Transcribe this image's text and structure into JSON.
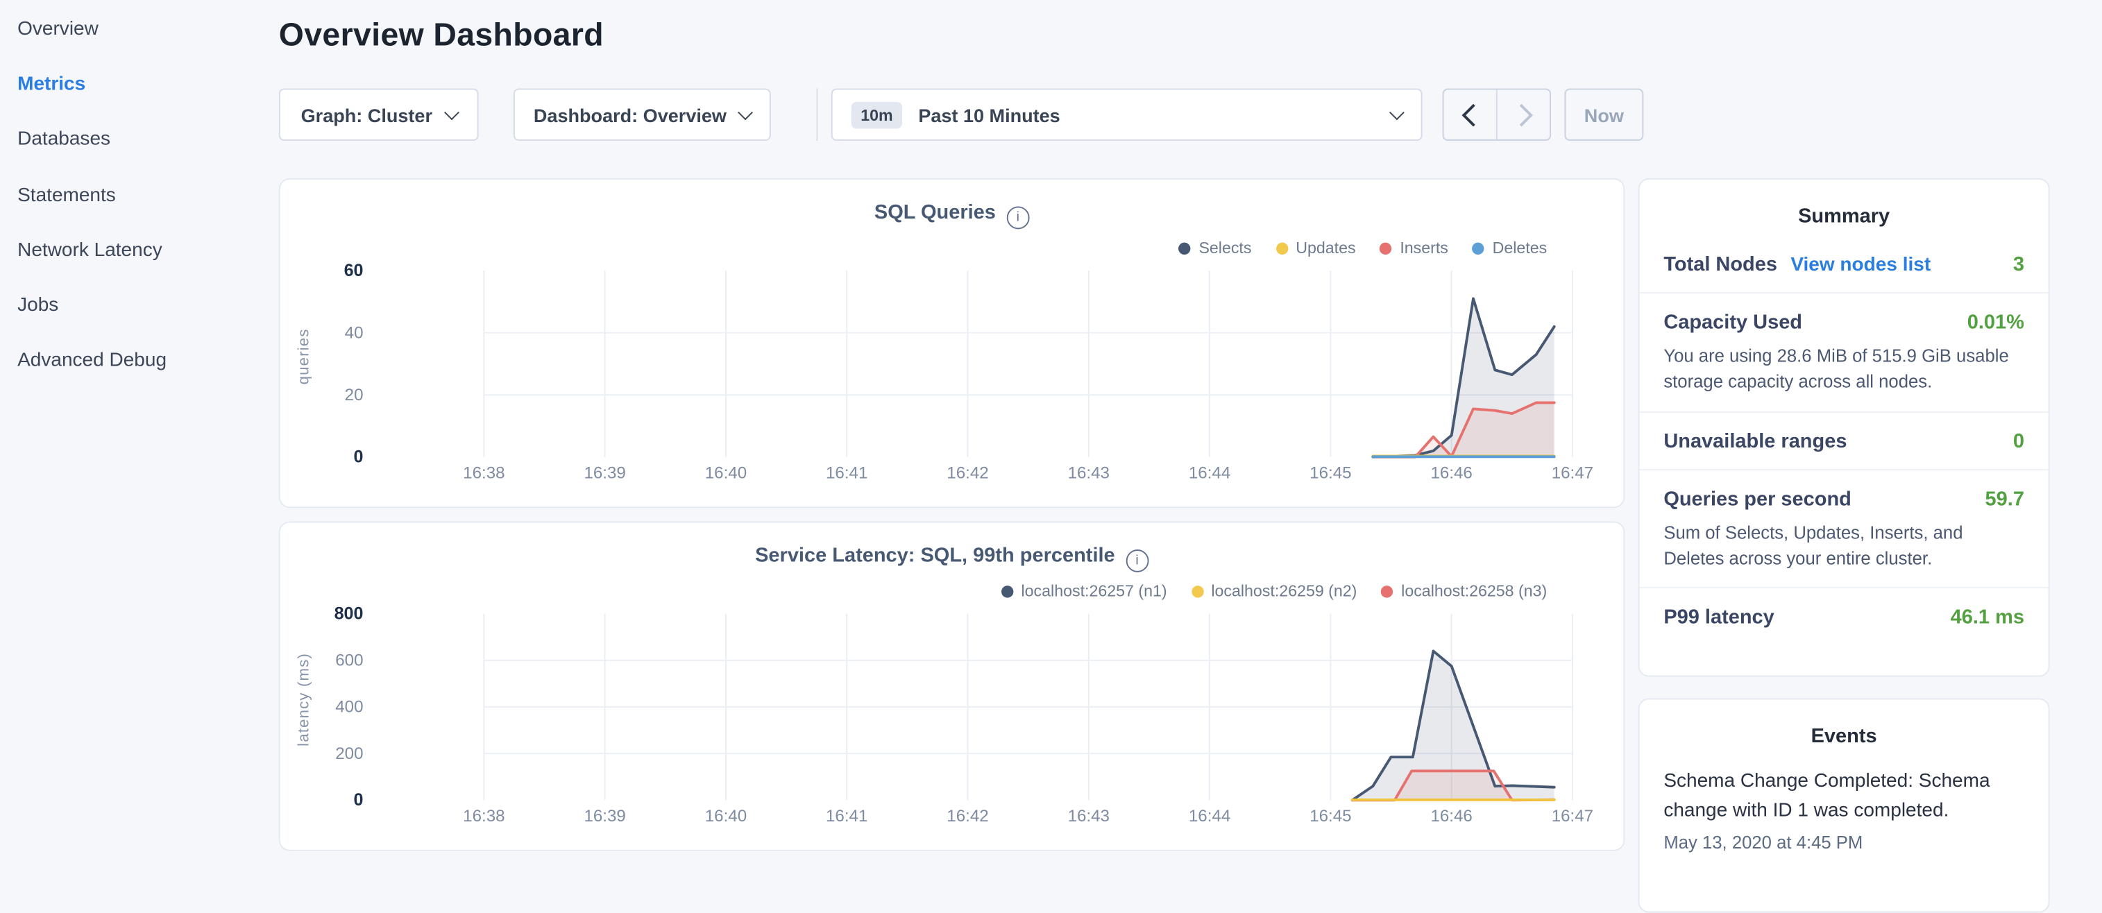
{
  "sidebar": {
    "items": [
      {
        "label": "Overview",
        "active": false
      },
      {
        "label": "Metrics",
        "active": true
      },
      {
        "label": "Databases",
        "active": false
      },
      {
        "label": "Statements",
        "active": false
      },
      {
        "label": "Network Latency",
        "active": false
      },
      {
        "label": "Jobs",
        "active": false
      },
      {
        "label": "Advanced Debug",
        "active": false
      }
    ]
  },
  "header": {
    "title": "Overview Dashboard"
  },
  "controls": {
    "graph_dropdown": "Graph: Cluster",
    "dashboard_dropdown": "Dashboard: Overview",
    "range_badge": "10m",
    "range_label": "Past 10 Minutes",
    "now_label": "Now",
    "prev_enabled": true,
    "next_enabled": false
  },
  "colors": {
    "accent_blue": "#2a7de1",
    "green": "#53a041",
    "navy": "#475872",
    "yellow": "#f0c33c",
    "red": "#e5726f",
    "blue": "#5b9fd6"
  },
  "chart_data": [
    {
      "type": "line",
      "title": "SQL Queries",
      "ylabel": "queries",
      "x_ticks": [
        "16:38",
        "16:39",
        "16:40",
        "16:41",
        "16:42",
        "16:43",
        "16:44",
        "16:45",
        "16:46",
        "16:47"
      ],
      "x_note": "series x values are minutes after 16:38",
      "ylim": [
        0,
        60
      ],
      "y_ticks": [
        0,
        20,
        40,
        60
      ],
      "grid_h_values": [
        20,
        40
      ],
      "grid": true,
      "legend_position": "top-right",
      "legend": [
        {
          "label": "Selects",
          "color": "#475872"
        },
        {
          "label": "Updates",
          "color": "#f2c94c"
        },
        {
          "label": "Inserts",
          "color": "#e5726f"
        },
        {
          "label": "Deletes",
          "color": "#5b9fd6"
        }
      ],
      "series": [
        {
          "name": "Selects",
          "color": "#475872",
          "fill": "rgba(71,88,114,0.13)",
          "points": [
            [
              7.35,
              0
            ],
            [
              7.7,
              0.5
            ],
            [
              7.85,
              2
            ],
            [
              8.0,
              7
            ],
            [
              8.18,
              51
            ],
            [
              8.36,
              28
            ],
            [
              8.5,
              26.5
            ],
            [
              8.7,
              33
            ],
            [
              8.85,
              42
            ]
          ]
        },
        {
          "name": "Inserts",
          "color": "#e5726f",
          "fill": "rgba(229,114,111,0.12)",
          "points": [
            [
              7.35,
              0
            ],
            [
              7.7,
              0
            ],
            [
              7.85,
              6.5
            ],
            [
              8.0,
              0.2
            ],
            [
              8.18,
              15.5
            ],
            [
              8.36,
              15
            ],
            [
              8.5,
              14
            ],
            [
              8.7,
              17.5
            ],
            [
              8.85,
              17.5
            ]
          ]
        },
        {
          "name": "Updates",
          "color": "#f0c33c",
          "fill": null,
          "points": [
            [
              7.35,
              0.3
            ],
            [
              8.85,
              0.3
            ]
          ]
        },
        {
          "name": "Deletes",
          "color": "#5b9fd6",
          "fill": null,
          "points": [
            [
              7.35,
              0.1
            ],
            [
              8.85,
              0.1
            ]
          ]
        }
      ]
    },
    {
      "type": "line",
      "title": "Service Latency: SQL, 99th percentile",
      "ylabel": "latency (ms)",
      "x_ticks": [
        "16:38",
        "16:39",
        "16:40",
        "16:41",
        "16:42",
        "16:43",
        "16:44",
        "16:45",
        "16:46",
        "16:47"
      ],
      "x_note": "series x values are minutes after 16:38",
      "ylim": [
        0,
        800
      ],
      "y_ticks": [
        0,
        200,
        400,
        600,
        800
      ],
      "grid_h_values": [
        200,
        400,
        600
      ],
      "grid": true,
      "legend_position": "top-right",
      "legend": [
        {
          "label": "localhost:26257 (n1)",
          "color": "#475872"
        },
        {
          "label": "localhost:26259 (n2)",
          "color": "#f2c94c"
        },
        {
          "label": "localhost:26258 (n3)",
          "color": "#e5726f"
        }
      ],
      "series": [
        {
          "name": "localhost:26257 (n1)",
          "color": "#475872",
          "fill": "rgba(71,88,114,0.13)",
          "points": [
            [
              7.18,
              0
            ],
            [
              7.35,
              60
            ],
            [
              7.5,
              185
            ],
            [
              7.68,
              185
            ],
            [
              7.85,
              640
            ],
            [
              8.0,
              575
            ],
            [
              8.36,
              60
            ],
            [
              8.5,
              62
            ],
            [
              8.85,
              55
            ]
          ]
        },
        {
          "name": "localhost:26258 (n3)",
          "color": "#e5726f",
          "fill": "rgba(229,114,111,0.12)",
          "points": [
            [
              7.18,
              0
            ],
            [
              7.53,
              0
            ],
            [
              7.67,
              125
            ],
            [
              8.35,
              125
            ],
            [
              8.5,
              0
            ],
            [
              8.85,
              2
            ]
          ]
        },
        {
          "name": "localhost:26259 (n2)",
          "color": "#f0c33c",
          "fill": null,
          "points": [
            [
              7.18,
              1
            ],
            [
              8.85,
              1
            ]
          ]
        }
      ]
    }
  ],
  "summary": {
    "title": "Summary",
    "rows": [
      {
        "label": "Total Nodes",
        "link": "View nodes list",
        "value": "3",
        "note": null
      },
      {
        "label": "Capacity Used",
        "link": null,
        "value": "0.01%",
        "note": "You are using 28.6 MiB of 515.9 GiB usable storage capacity across all nodes."
      },
      {
        "label": "Unavailable ranges",
        "link": null,
        "value": "0",
        "note": null
      },
      {
        "label": "Queries per second",
        "link": null,
        "value": "59.7",
        "note": "Sum of Selects, Updates, Inserts, and Deletes across your entire cluster."
      },
      {
        "label": "P99 latency",
        "link": null,
        "value": "46.1 ms",
        "note": null
      }
    ]
  },
  "events": {
    "title": "Events",
    "items": [
      {
        "text": "Schema Change Completed: Schema change with ID 1 was completed.",
        "time": "May 13, 2020 at 4:45 PM"
      }
    ]
  }
}
